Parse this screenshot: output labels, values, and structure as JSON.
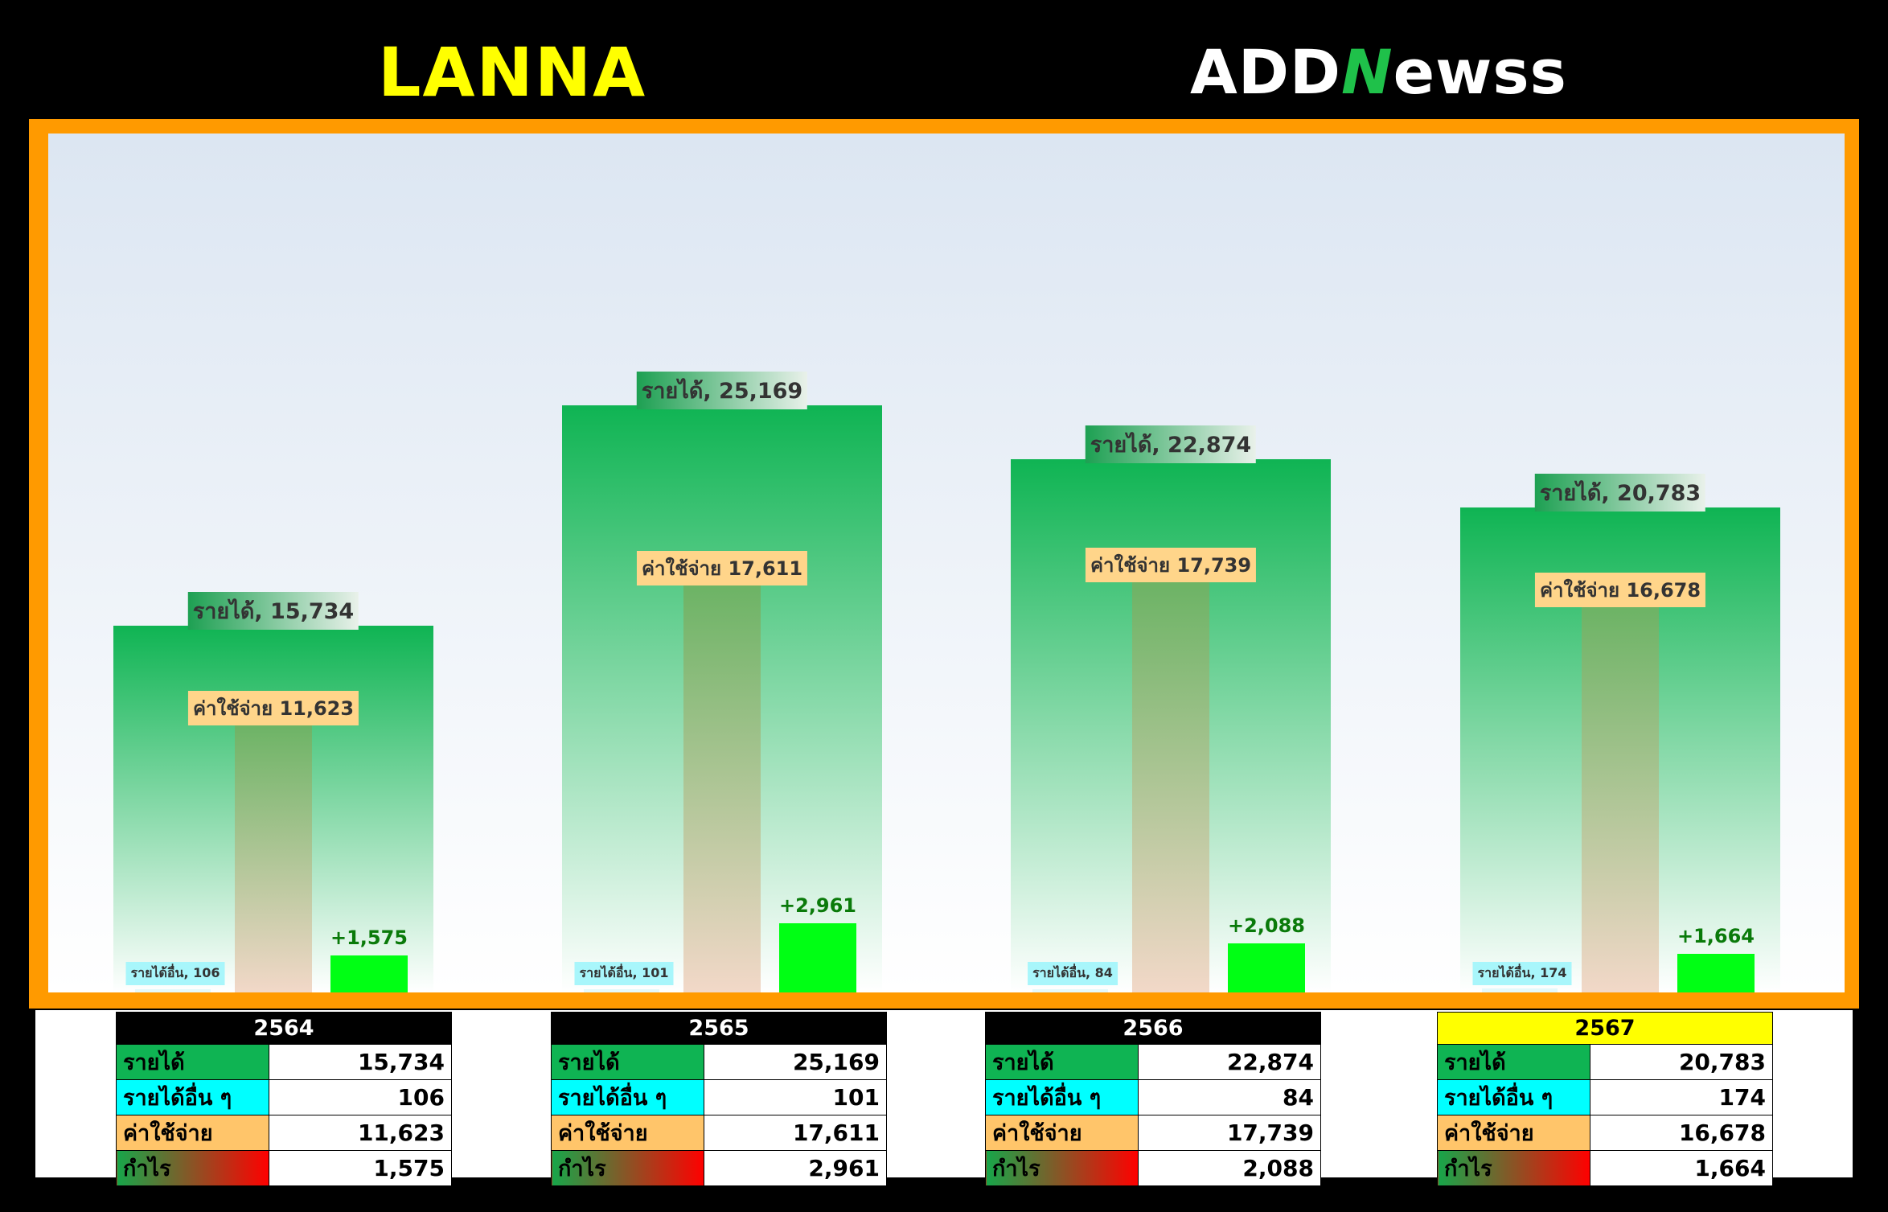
{
  "header": {
    "brand": "LANNA",
    "logo_pre": "ADD",
    "logo_n": "N",
    "logo_post": "ewss"
  },
  "colors": {
    "revenue": "#0fb453",
    "other_income": "#00ffff",
    "expense": "#ffc56a",
    "profit": "#00ff14",
    "frame": "#ff9a00",
    "highlight_year": "#ffff00"
  },
  "chart_data": {
    "type": "bar",
    "categories": [
      "2564",
      "2565",
      "2566",
      "2567"
    ],
    "series": [
      {
        "name": "รายได้",
        "values": [
          15734,
          25169,
          22874,
          20783
        ]
      },
      {
        "name": "รายได้อื่น",
        "values": [
          106,
          101,
          84,
          174
        ]
      },
      {
        "name": "ค่าใช้จ่าย",
        "values": [
          11623,
          17611,
          17739,
          16678
        ]
      },
      {
        "name": "กำไร",
        "values": [
          1575,
          2961,
          2088,
          1664
        ]
      }
    ],
    "labels": {
      "revenue": [
        "รายได้, 15,734",
        "รายได้, 25,169",
        "รายได้, 22,874",
        "รายได้, 20,783"
      ],
      "other": [
        "รายได้อื่น, 106",
        "รายได้อื่น, 101",
        "รายได้อื่น, 84",
        "รายได้อื่น, 174"
      ],
      "expense": [
        "ค่าใช้จ่าย 11,623",
        "ค่าใช้จ่าย 17,611",
        "ค่าใช้จ่าย 17,739",
        "ค่าใช้จ่าย 16,678"
      ],
      "profit": [
        "+1,575",
        "+2,961",
        "+2,088",
        "+1,664"
      ]
    },
    "ylim": [
      0,
      27500
    ],
    "grid": false,
    "legend": "none"
  },
  "tables": [
    {
      "year": "2564",
      "highlight": false,
      "rows": [
        {
          "label": "รายได้",
          "value": "15,734"
        },
        {
          "label": "รายได้อื่น ๆ",
          "value": "106"
        },
        {
          "label": "ค่าใช้จ่าย",
          "value": "11,623"
        },
        {
          "label": "กำไร",
          "value": "1,575"
        }
      ]
    },
    {
      "year": "2565",
      "highlight": false,
      "rows": [
        {
          "label": "รายได้",
          "value": "25,169"
        },
        {
          "label": "รายได้อื่น ๆ",
          "value": "101"
        },
        {
          "label": "ค่าใช้จ่าย",
          "value": "17,611"
        },
        {
          "label": "กำไร",
          "value": "2,961"
        }
      ]
    },
    {
      "year": "2566",
      "highlight": false,
      "rows": [
        {
          "label": "รายได้",
          "value": "22,874"
        },
        {
          "label": "รายได้อื่น ๆ",
          "value": "84"
        },
        {
          "label": "ค่าใช้จ่าย",
          "value": "17,739"
        },
        {
          "label": "กำไร",
          "value": "2,088"
        }
      ]
    },
    {
      "year": "2567",
      "highlight": true,
      "rows": [
        {
          "label": "รายได้",
          "value": "20,783"
        },
        {
          "label": "รายได้อื่น ๆ",
          "value": "174"
        },
        {
          "label": "ค่าใช้จ่าย",
          "value": "16,678"
        },
        {
          "label": "กำไร",
          "value": "1,664"
        }
      ]
    }
  ]
}
